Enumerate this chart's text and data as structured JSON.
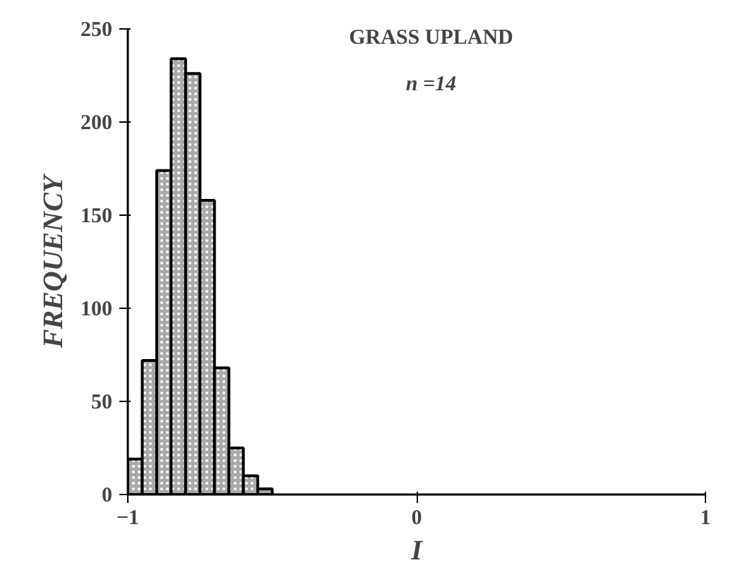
{
  "chart_data": {
    "type": "histogram",
    "title": "GRASS UPLAND",
    "subtitle": "n =14",
    "xlabel": "I",
    "ylabel": "FREQUENCY",
    "bins": [
      -1,
      -0.95,
      -0.9,
      -0.85,
      -0.8,
      -0.75,
      -0.7,
      -0.65,
      -0.6,
      -0.55,
      -0.5
    ],
    "values": [
      19,
      72,
      174,
      234,
      226,
      158,
      68,
      25,
      10,
      3
    ],
    "color": "#aaaaaa",
    "xlim": [
      -1,
      1
    ],
    "xticks": [
      -1,
      0,
      1
    ],
    "ylim": [
      0,
      250
    ],
    "yticks": [
      0,
      50,
      100,
      150,
      200,
      250
    ],
    "grid": false
  }
}
